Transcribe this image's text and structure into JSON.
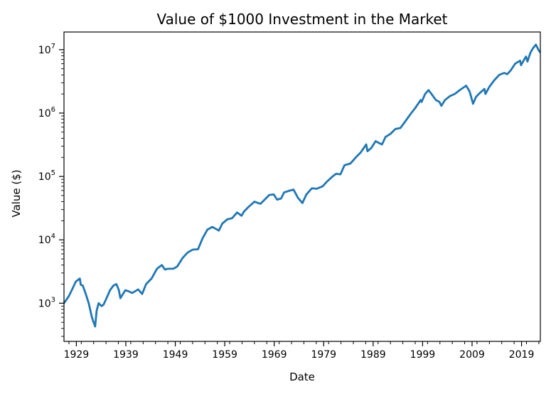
{
  "chart_data": {
    "type": "line",
    "title": "Value of $1000 Investment in the Market",
    "xlabel": "Date",
    "ylabel": "Value ($)",
    "yscale": "log",
    "ylim": [
      250,
      19000000
    ],
    "xlim": [
      1926.5,
      2022.8
    ],
    "grid": false,
    "legend": "none",
    "color": "#1f77b4",
    "x_ticks": [
      {
        "value": 1929,
        "label": "1929"
      },
      {
        "value": 1939,
        "label": "1939"
      },
      {
        "value": 1949,
        "label": "1949"
      },
      {
        "value": 1959,
        "label": "1959"
      },
      {
        "value": 1969,
        "label": "1969"
      },
      {
        "value": 1979,
        "label": "1979"
      },
      {
        "value": 1989,
        "label": "1989"
      },
      {
        "value": 1999,
        "label": "1999"
      },
      {
        "value": 2009,
        "label": "2009"
      },
      {
        "value": 2019,
        "label": "2019"
      }
    ],
    "y_ticks": [
      {
        "value": 1000,
        "base": "10",
        "exp": "3"
      },
      {
        "value": 10000,
        "base": "10",
        "exp": "4"
      },
      {
        "value": 100000,
        "base": "10",
        "exp": "5"
      },
      {
        "value": 1000000,
        "base": "10",
        "exp": "6"
      },
      {
        "value": 10000000,
        "base": "10",
        "exp": "7"
      }
    ],
    "series": [
      {
        "x": [
          1926.5,
          1927.5,
          1928.3,
          1928.9,
          1929.7,
          1929.9,
          1930.3,
          1930.9,
          1931.5,
          1932.1,
          1932.4,
          1932.8,
          1933.1,
          1933.5,
          1934.1,
          1934.5,
          1935.1,
          1935.8,
          1936.5,
          1937.1,
          1937.6,
          1937.9,
          1938.3,
          1938.9,
          1939.5,
          1940.3,
          1941.5,
          1942.3,
          1943.1,
          1944.2,
          1945.3,
          1946.3,
          1946.9,
          1947.5,
          1948.6,
          1949.4,
          1950.5,
          1951.5,
          1952.5,
          1953.6,
          1954.5,
          1955.5,
          1956.5,
          1957.8,
          1958.5,
          1959.5,
          1960.5,
          1961.5,
          1962.4,
          1962.9,
          1963.8,
          1965.0,
          1966.2,
          1966.8,
          1968.0,
          1968.9,
          1969.6,
          1970.4,
          1971.0,
          1972.2,
          1972.9,
          1973.8,
          1974.7,
          1975.5,
          1976.6,
          1977.6,
          1978.8,
          1979.6,
          1980.8,
          1981.5,
          1982.4,
          1983.2,
          1984.4,
          1985.5,
          1986.5,
          1987.6,
          1987.85,
          1988.6,
          1989.5,
          1990.4,
          1990.8,
          1991.5,
          1992.5,
          1993.5,
          1994.5,
          1995.5,
          1996.5,
          1997.5,
          1998.6,
          1998.8,
          1999.5,
          2000.2,
          2000.8,
          2001.7,
          2002.4,
          2002.8,
          2003.5,
          2004.5,
          2005.5,
          2006.5,
          2007.8,
          2008.5,
          2009.2,
          2009.8,
          2010.5,
          2011.5,
          2011.7,
          2012.5,
          2013.5,
          2014.5,
          2015.5,
          2016.1,
          2016.8,
          2017.7,
          2018.7,
          2018.9,
          2019.5,
          2019.9,
          2020.2,
          2020.8,
          2021.3,
          2021.9,
          2022.4,
          2022.8
        ],
        "y": [
          1000,
          1300,
          1750,
          2200,
          2450,
          1950,
          1900,
          1400,
          1000,
          620,
          520,
          430,
          760,
          1000,
          900,
          950,
          1200,
          1600,
          1900,
          2000,
          1600,
          1200,
          1350,
          1600,
          1550,
          1450,
          1650,
          1400,
          2000,
          2450,
          3500,
          4000,
          3400,
          3500,
          3500,
          3800,
          5200,
          6300,
          7000,
          7100,
          10500,
          14500,
          16000,
          14000,
          18000,
          21000,
          22000,
          27000,
          24000,
          28000,
          33000,
          40000,
          37000,
          41000,
          51000,
          52000,
          43000,
          45000,
          56000,
          60000,
          62000,
          46000,
          38000,
          52000,
          65000,
          64000,
          70000,
          82000,
          100000,
          110000,
          108000,
          150000,
          160000,
          200000,
          240000,
          320000,
          250000,
          280000,
          360000,
          330000,
          320000,
          420000,
          470000,
          560000,
          580000,
          740000,
          950000,
          1200000,
          1600000,
          1500000,
          2000000,
          2300000,
          2000000,
          1600000,
          1500000,
          1300000,
          1600000,
          1850000,
          2000000,
          2300000,
          2700000,
          2200000,
          1400000,
          1800000,
          2050000,
          2400000,
          2000000,
          2600000,
          3300000,
          4000000,
          4300000,
          4100000,
          4700000,
          6000000,
          6700000,
          5700000,
          6900000,
          7800000,
          6500000,
          9000000,
          10500000,
          12000000,
          10000000,
          9000000
        ]
      }
    ]
  }
}
